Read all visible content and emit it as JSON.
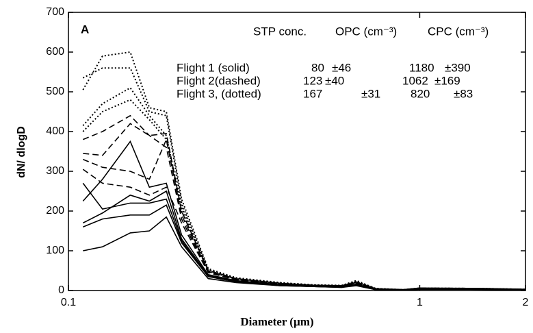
{
  "chart_data": {
    "type": "line",
    "y_label": "dN/ dlogD",
    "x_label": "Diameter (µm)",
    "xlim": [
      0.1,
      2
    ],
    "xticks": [
      0.1,
      1,
      2
    ],
    "log_x": true,
    "ylim": [
      0,
      700
    ],
    "yticks": [
      0,
      100,
      200,
      300,
      400,
      500,
      600,
      700
    ],
    "x": [
      0.11,
      0.125,
      0.15,
      0.17,
      0.19,
      0.21,
      0.25,
      0.3,
      0.4,
      0.5,
      0.6,
      0.66,
      0.75,
      0.9,
      1.0,
      1.5,
      2.0
    ],
    "series": [
      {
        "color": "#000",
        "dash": "solid",
        "values": [
          100,
          110,
          145,
          150,
          185,
          110,
          30,
          20,
          12,
          10,
          8,
          12,
          2,
          1,
          3,
          3,
          2
        ]
      },
      {
        "color": "#000",
        "dash": "solid",
        "values": [
          160,
          180,
          190,
          190,
          215,
          120,
          35,
          22,
          12,
          10,
          8,
          14,
          2,
          1,
          4,
          3,
          2
        ]
      },
      {
        "color": "#000",
        "dash": "solid",
        "values": [
          170,
          195,
          240,
          225,
          250,
          130,
          38,
          24,
          14,
          10,
          9,
          15,
          2,
          1,
          4,
          3,
          2
        ]
      },
      {
        "color": "#000",
        "dash": "solid",
        "values": [
          225,
          280,
          375,
          260,
          270,
          140,
          40,
          25,
          15,
          11,
          10,
          16,
          3,
          1,
          4,
          3,
          2
        ]
      },
      {
        "color": "#000",
        "dash": "solid",
        "values": [
          270,
          205,
          220,
          220,
          230,
          125,
          35,
          22,
          13,
          10,
          9,
          14,
          2,
          1,
          3,
          3,
          2
        ]
      },
      {
        "color": "#000",
        "dash": "dashed",
        "values": [
          345,
          340,
          420,
          390,
          395,
          200,
          50,
          30,
          18,
          13,
          12,
          20,
          4,
          2,
          5,
          4,
          3
        ]
      },
      {
        "color": "#000",
        "dash": "dashed",
        "values": [
          330,
          310,
          300,
          280,
          380,
          190,
          48,
          28,
          17,
          12,
          11,
          20,
          4,
          2,
          5,
          4,
          3
        ]
      },
      {
        "color": "#000",
        "dash": "dashed",
        "values": [
          305,
          270,
          260,
          240,
          260,
          170,
          45,
          27,
          16,
          12,
          11,
          18,
          3,
          2,
          5,
          4,
          3
        ]
      },
      {
        "color": "#000",
        "dash": "dashed",
        "values": [
          380,
          400,
          440,
          390,
          360,
          180,
          46,
          28,
          16,
          12,
          11,
          18,
          3,
          2,
          5,
          4,
          3
        ]
      },
      {
        "color": "#000",
        "dash": "dotted",
        "values": [
          505,
          590,
          600,
          460,
          450,
          230,
          55,
          32,
          20,
          14,
          13,
          25,
          5,
          2,
          6,
          5,
          3
        ]
      },
      {
        "color": "#000",
        "dash": "dotted",
        "values": [
          535,
          560,
          560,
          450,
          440,
          220,
          52,
          30,
          19,
          14,
          12,
          22,
          5,
          2,
          6,
          5,
          3
        ]
      },
      {
        "color": "#000",
        "dash": "dotted",
        "values": [
          415,
          470,
          510,
          440,
          390,
          210,
          50,
          30,
          18,
          13,
          12,
          22,
          4,
          2,
          6,
          5,
          3
        ]
      },
      {
        "color": "#000",
        "dash": "dotted",
        "values": [
          400,
          450,
          480,
          430,
          380,
          200,
          48,
          29,
          18,
          13,
          12,
          20,
          4,
          2,
          6,
          5,
          3
        ]
      }
    ],
    "annotations": {
      "panel": "A",
      "header": [
        "STP conc.",
        "OPC (cm⁻³)",
        "CPC (cm⁻³)"
      ],
      "rows": [
        [
          "Flight 1 (solid)",
          "80",
          "±46",
          "1180",
          "±390"
        ],
        [
          "Flight 2(dashed)",
          "123",
          "±40",
          "1062",
          "±169"
        ],
        [
          "Flight 3, (dotted)",
          "167",
          "±31",
          "820",
          "±83"
        ]
      ]
    }
  }
}
